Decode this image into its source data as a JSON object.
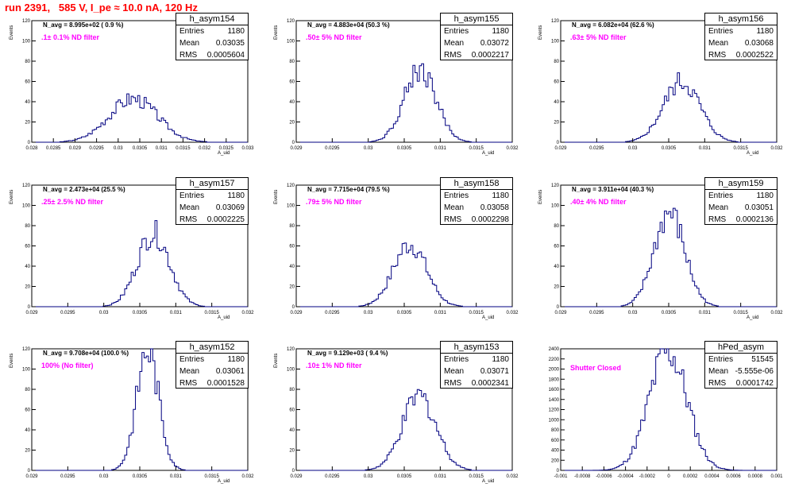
{
  "title": "run 2391,   585 V, I_pe ≈ 10.0 nA, 120 Hz",
  "chart_data": [
    {
      "type": "bar",
      "name": "h_asym154",
      "n_avg": "N_avg = 8.995e+02 ( 0.9 %)",
      "filter": ".1± 0.1% ND filter",
      "entries": "1180",
      "mean": "0.03035",
      "rms": "0.0005604",
      "xlim": [
        0.028,
        0.033
      ],
      "ylim": [
        0,
        120
      ],
      "xticks": [
        "0.028",
        "0.0285",
        "0.029",
        "0.0295",
        "0.03",
        "0.0305",
        "0.031",
        "0.0315",
        "0.032",
        "0.0325",
        "0.033"
      ],
      "yticks": [
        "0",
        "20",
        "40",
        "60",
        "80",
        "100",
        "120"
      ],
      "xlabel": "A_uid",
      "ylabel": "Events",
      "peak": 43,
      "center": 0.03035,
      "sigma": 0.0005604
    },
    {
      "type": "bar",
      "name": "h_asym155",
      "n_avg": "N_avg = 4.883e+04 (50.3 %)",
      "filter": ".50± 5% ND filter",
      "entries": "1180",
      "mean": "0.03072",
      "rms": "0.0002217",
      "xlim": [
        0.029,
        0.032
      ],
      "ylim": [
        0,
        120
      ],
      "xticks": [
        "0.029",
        "0.0295",
        "0.03",
        "0.0305",
        "0.031",
        "0.0315",
        "0.032"
      ],
      "yticks": [
        "0",
        "20",
        "40",
        "60",
        "80",
        "100",
        "120"
      ],
      "xlabel": "A_uid",
      "ylabel": "Events",
      "peak": 72,
      "center": 0.03072,
      "sigma": 0.0002217
    },
    {
      "type": "bar",
      "name": "h_asym156",
      "n_avg": "N_avg = 6.082e+04 (62.6 %)",
      "filter": ".63± 5% ND filter",
      "entries": "1180",
      "mean": "0.03068",
      "rms": "0.0002522",
      "xlim": [
        0.029,
        0.032
      ],
      "ylim": [
        0,
        120
      ],
      "xticks": [
        "0.029",
        "0.0295",
        "0.03",
        "0.0305",
        "0.031",
        "0.0315",
        "0.032"
      ],
      "yticks": [
        "0",
        "20",
        "40",
        "60",
        "80",
        "100",
        "120"
      ],
      "xlabel": "A_uid",
      "ylabel": "Events",
      "peak": 60,
      "center": 0.03068,
      "sigma": 0.0002522
    },
    {
      "type": "bar",
      "name": "h_asym157",
      "n_avg": "N_avg = 2.473e+04 (25.5 %)",
      "filter": ".25± 2.5% ND filter",
      "entries": "1180",
      "mean": "0.03069",
      "rms": "0.0002225",
      "xlim": [
        0.029,
        0.032
      ],
      "ylim": [
        0,
        120
      ],
      "xticks": [
        "0.029",
        "0.0295",
        "0.03",
        "0.0305",
        "0.031",
        "0.0315",
        "0.032"
      ],
      "yticks": [
        "0",
        "20",
        "40",
        "60",
        "80",
        "100",
        "120"
      ],
      "xlabel": "A_uid",
      "ylabel": "Events",
      "peak": 73,
      "center": 0.03069,
      "sigma": 0.0002225
    },
    {
      "type": "bar",
      "name": "h_asym158",
      "n_avg": "N_avg = 7.715e+04 (79.5 %)",
      "filter": ".79± 5% ND filter",
      "entries": "1180",
      "mean": "0.03058",
      "rms": "0.0002298",
      "xlim": [
        0.029,
        0.032
      ],
      "ylim": [
        0,
        120
      ],
      "xticks": [
        "0.029",
        "0.0295",
        "0.03",
        "0.0305",
        "0.031",
        "0.0315",
        "0.032"
      ],
      "yticks": [
        "0",
        "20",
        "40",
        "60",
        "80",
        "100",
        "120"
      ],
      "xlabel": "A_uid",
      "ylabel": "Events",
      "peak": 62,
      "center": 0.03058,
      "sigma": 0.0002298
    },
    {
      "type": "bar",
      "name": "h_asym159",
      "n_avg": "N_avg = 3.911e+04 (40.3 %)",
      "filter": ".40± 4% ND filter",
      "entries": "1180",
      "mean": "0.03051",
      "rms": "0.0002136",
      "xlim": [
        0.029,
        0.032
      ],
      "ylim": [
        0,
        120
      ],
      "xticks": [
        "0.029",
        "0.0295",
        "0.03",
        "0.0305",
        "0.031",
        "0.0315",
        "0.032"
      ],
      "yticks": [
        "0",
        "20",
        "40",
        "60",
        "80",
        "100",
        "120"
      ],
      "xlabel": "A_uid",
      "ylabel": "Events",
      "peak": 92,
      "center": 0.03051,
      "sigma": 0.0002136
    },
    {
      "type": "bar",
      "name": "h_asym152",
      "n_avg": "N_avg = 9.708e+04 (100.0 %)",
      "filter": "100% (No filter)",
      "entries": "1180",
      "mean": "0.03061",
      "rms": "0.0001528",
      "xlim": [
        0.029,
        0.032
      ],
      "ylim": [
        0,
        120
      ],
      "xticks": [
        "0.029",
        "0.0295",
        "0.03",
        "0.0305",
        "0.031",
        "0.0315",
        "0.032"
      ],
      "yticks": [
        "0",
        "20",
        "40",
        "60",
        "80",
        "100",
        "120"
      ],
      "xlabel": "A_uid",
      "ylabel": "Events",
      "peak": 120,
      "center": 0.03061,
      "sigma": 0.0001528
    },
    {
      "type": "bar",
      "name": "h_asym153",
      "n_avg": "N_avg = 9.129e+03 ( 9.4 %)",
      "filter": ".10± 1% ND filter",
      "entries": "1180",
      "mean": "0.03071",
      "rms": "0.0002341",
      "xlim": [
        0.029,
        0.032
      ],
      "ylim": [
        0,
        120
      ],
      "xticks": [
        "0.029",
        "0.0295",
        "0.03",
        "0.0305",
        "0.031",
        "0.0315",
        "0.032"
      ],
      "yticks": [
        "0",
        "20",
        "40",
        "60",
        "80",
        "100",
        "120"
      ],
      "xlabel": "A_uid",
      "ylabel": "Events",
      "peak": 73,
      "center": 0.03071,
      "sigma": 0.0002341
    },
    {
      "type": "bar",
      "name": "hPed_asym",
      "n_avg": "",
      "filter": "Shutter Closed",
      "entries": "51545",
      "mean": "-5.555e-06",
      "rms": "0.0001742",
      "xlim": [
        -0.001,
        0.001
      ],
      "ylim": [
        0,
        2400
      ],
      "xticks": [
        "-0.001",
        "-0.0008",
        "-0.0006",
        "-0.0004",
        "-0.0002",
        "0",
        "0.0002",
        "0.0004",
        "0.0006",
        "0.0008",
        "0.001"
      ],
      "yticks": [
        "0",
        "200",
        "400",
        "600",
        "800",
        "1000",
        "1200",
        "1400",
        "1600",
        "1800",
        "2000",
        "2200",
        "2400"
      ],
      "xlabel": "",
      "ylabel": "",
      "peak": 2360,
      "center": -5.555e-06,
      "sigma": 0.0001742
    }
  ]
}
